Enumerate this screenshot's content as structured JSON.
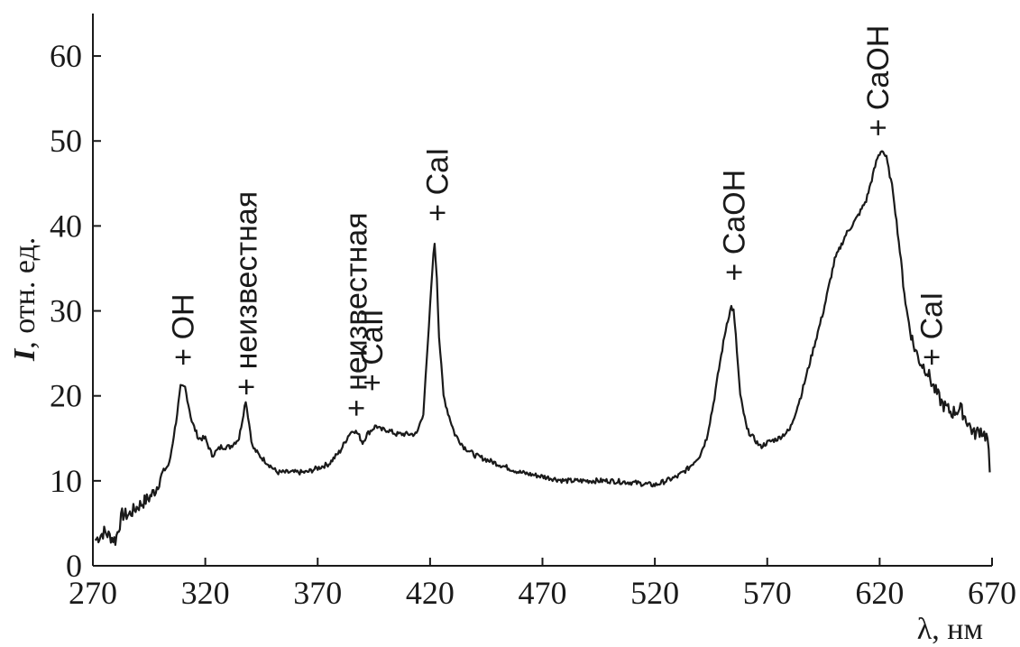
{
  "chart_data": {
    "type": "line",
    "xlabel": "λ, нм",
    "ylabel_symbol": "I",
    "ylabel_unit": ", отн. ед.",
    "xlim": [
      270,
      670
    ],
    "ylim": [
      0,
      65
    ],
    "x_ticks": [
      270,
      320,
      370,
      420,
      470,
      520,
      570,
      620,
      670
    ],
    "y_ticks": [
      0,
      10,
      20,
      30,
      40,
      50,
      60
    ],
    "grid": false,
    "legend": "none",
    "line_color": "#1a1a1a",
    "series": [
      {
        "x": [
          271,
          275,
          280,
          283,
          286,
          290,
          295,
          298,
          301,
          304,
          307,
          309,
          311,
          314,
          317,
          320,
          323,
          327,
          331,
          335,
          338,
          341,
          344,
          348,
          352,
          356,
          360,
          365,
          370,
          375,
          380,
          384,
          386,
          388,
          390,
          392,
          394,
          396,
          398,
          401,
          405,
          410,
          414,
          417,
          419,
          421,
          422,
          423,
          424,
          426,
          428,
          431,
          435,
          440,
          445,
          450,
          460,
          470,
          480,
          490,
          500,
          510,
          520,
          525,
          530,
          535,
          540,
          543,
          546,
          549,
          552,
          554,
          555,
          556,
          558,
          561,
          564,
          567,
          570,
          575,
          580,
          585,
          590,
          595,
          600,
          605,
          610,
          614,
          617,
          619,
          621,
          623,
          626,
          629,
          632,
          635,
          638,
          641,
          644,
          648,
          652,
          656,
          659,
          662,
          665,
          668,
          669
        ],
        "y": [
          3,
          4,
          3,
          6,
          6,
          7,
          8,
          9,
          11,
          12,
          17,
          21,
          21,
          17,
          15,
          15,
          13,
          14,
          14,
          15,
          19.5,
          14,
          13,
          12,
          11,
          11,
          11,
          11,
          11.5,
          12,
          13.5,
          15.5,
          16,
          15.5,
          14.5,
          15.5,
          16,
          16.5,
          16,
          16,
          15.5,
          15.5,
          15.5,
          18,
          26,
          35,
          38,
          34,
          27,
          20,
          18,
          15.5,
          14,
          13,
          12.5,
          12,
          11,
          10.5,
          10,
          10,
          10,
          9.8,
          9.5,
          10,
          10.5,
          11.5,
          13,
          15,
          19,
          24,
          28.5,
          30.5,
          30,
          27,
          20,
          16,
          15,
          14,
          14.5,
          15,
          16,
          20,
          25,
          30,
          36,
          39,
          41,
          43,
          46,
          48,
          49,
          48,
          44,
          37,
          30,
          26,
          24,
          23,
          21,
          19,
          18,
          18.5,
          17,
          15.5,
          16,
          15,
          11
        ]
      }
    ],
    "annotations": [
      {
        "text": "OH",
        "x": 310,
        "y": 23.5
      },
      {
        "text": "неизвестная",
        "x": 338,
        "y": 20
      },
      {
        "text": "неизвестная",
        "x": 387,
        "y": 17.5
      },
      {
        "text": "CaII",
        "x": 394,
        "y": 20.5
      },
      {
        "text": "CaI",
        "x": 423,
        "y": 40.5
      },
      {
        "text": "CaOH",
        "x": 555,
        "y": 33.5
      },
      {
        "text": "CaOH",
        "x": 619,
        "y": 50.5
      },
      {
        "text": "CaI",
        "x": 643,
        "y": 23.5
      }
    ]
  }
}
